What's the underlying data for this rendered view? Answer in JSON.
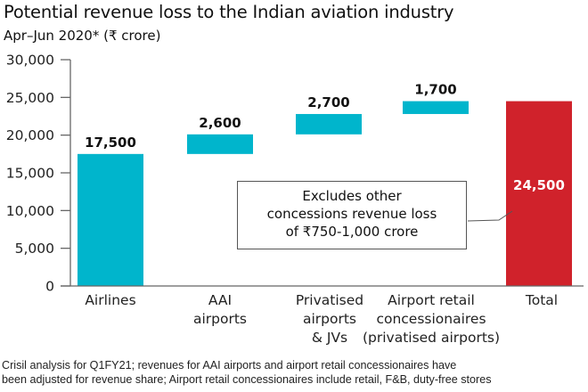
{
  "chart_data": {
    "type": "bar",
    "subtype": "waterfall",
    "title": "Potential revenue loss to the Indian aviation industry",
    "subtitle": "Apr–Jun 2020* (₹ crore)",
    "xlabel": "",
    "ylabel": "",
    "ylim": [
      0,
      30000
    ],
    "yticks": [
      0,
      5000,
      10000,
      15000,
      20000,
      25000,
      30000
    ],
    "ytick_labels": [
      "0",
      "5,000",
      "10,000",
      "15,000",
      "20,000",
      "25,000",
      "30,000"
    ],
    "grid": false,
    "categories": [
      [
        "Airlines"
      ],
      [
        "AAI",
        "airports"
      ],
      [
        "Privatised",
        "airports",
        "& JVs"
      ],
      [
        "Airport retail",
        "concessionaires",
        "(privatised airports)"
      ],
      [
        "Total"
      ]
    ],
    "values": [
      17500,
      2600,
      2700,
      1700,
      24500
    ],
    "value_labels": [
      "17,500",
      "2,600",
      "2,700",
      "1,700",
      "24,500"
    ],
    "bar_kinds": [
      "base",
      "step",
      "step",
      "step",
      "total"
    ],
    "colors": {
      "step": "#00b5cc",
      "total": "#d0222b"
    },
    "annotation": {
      "lines": [
        "Excludes other",
        "concessions revenue loss",
        "of ₹750-1,000 crore"
      ],
      "points_to": "Total"
    }
  },
  "footnote": {
    "lines": [
      "Crisil analysis for Q1FY21; revenues for AAI airports and airport retail concessionaires have",
      "been adjusted for revenue share; Airport retail concessionaires include retail, F&B, duty-free stores"
    ]
  }
}
